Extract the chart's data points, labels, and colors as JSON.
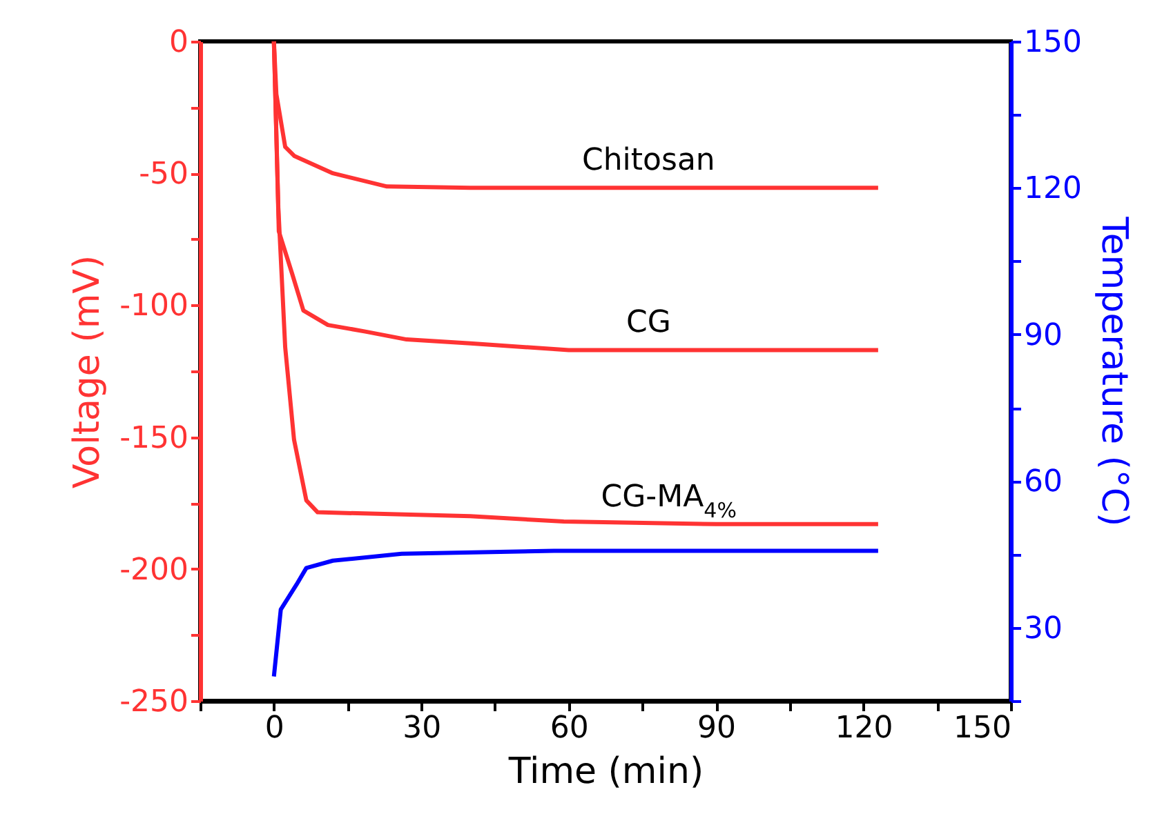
{
  "chart_data": {
    "type": "line",
    "xlabel": "Time (min)",
    "ylabel": "Voltage (mV)",
    "y2label": "Temperature (°C)",
    "xlim": [
      -15,
      150
    ],
    "xticks": [
      {
        "value": -15,
        "label": null
      },
      0,
      {
        "value": 15,
        "label": null
      },
      30,
      {
        "value": 45,
        "label": null
      },
      60,
      {
        "value": 75,
        "label": null
      },
      90,
      {
        "value": 105,
        "label": null
      },
      120,
      {
        "value": 135,
        "label": null
      },
      150
    ],
    "ylim": [
      -250,
      0
    ],
    "yticks": [
      -250,
      {
        "value": -225,
        "label": null
      },
      -200,
      {
        "value": -175,
        "label": null
      },
      -150,
      {
        "value": -125,
        "label": null
      },
      -100,
      {
        "value": -75,
        "label": null
      },
      -50,
      {
        "value": -25,
        "label": null
      },
      0
    ],
    "y2lim": [
      15,
      150
    ],
    "y2ticks": [
      {
        "value": 15,
        "label": null
      },
      30,
      {
        "value": 45,
        "label": null
      },
      60,
      {
        "value": 75,
        "label": null
      },
      90,
      {
        "value": 105,
        "label": null
      },
      120,
      {
        "value": 135,
        "label": null
      },
      150
    ],
    "grid": false,
    "legend": false,
    "marker": "none",
    "line_style": "solid",
    "series": [
      {
        "name": "Chitosan",
        "color": "#ff3333",
        "x": [
          0,
          0.5,
          2.3,
          4.2,
          12,
          23,
          40,
          60,
          90,
          123
        ],
        "values": [
          0,
          -20,
          -40,
          -43.5,
          -50,
          -55,
          -55.5,
          -55.5,
          -55.5,
          -55.5
        ]
      },
      {
        "name": "CG",
        "color": "#ff3333",
        "x": [
          0,
          1,
          3.7,
          6,
          11,
          18.6,
          27,
          40,
          60,
          90,
          123
        ],
        "values": [
          0,
          -72,
          -88,
          -102,
          -107.5,
          -110,
          -113,
          -114.5,
          -117,
          -117,
          -117
        ]
      },
      {
        "name": "CG-MA$_{4%}$",
        "color": "#ff3333",
        "x": [
          0,
          0.9,
          2.3,
          4.1,
          6.6,
          8.9,
          40,
          59,
          90,
          123
        ],
        "values": [
          0,
          -63,
          -116,
          -151,
          -174,
          -178.5,
          -180,
          -182,
          -183,
          -183
        ]
      },
      {
        "color": "#0000ff",
        "axis": "y2",
        "x": [
          0,
          1.4,
          4.6,
          6.6,
          12,
          26,
          57,
          90,
          123
        ],
        "values": [
          20,
          33.7,
          38.8,
          42.2,
          43.7,
          45.1,
          45.7,
          45.7,
          45.7
        ]
      }
    ]
  }
}
